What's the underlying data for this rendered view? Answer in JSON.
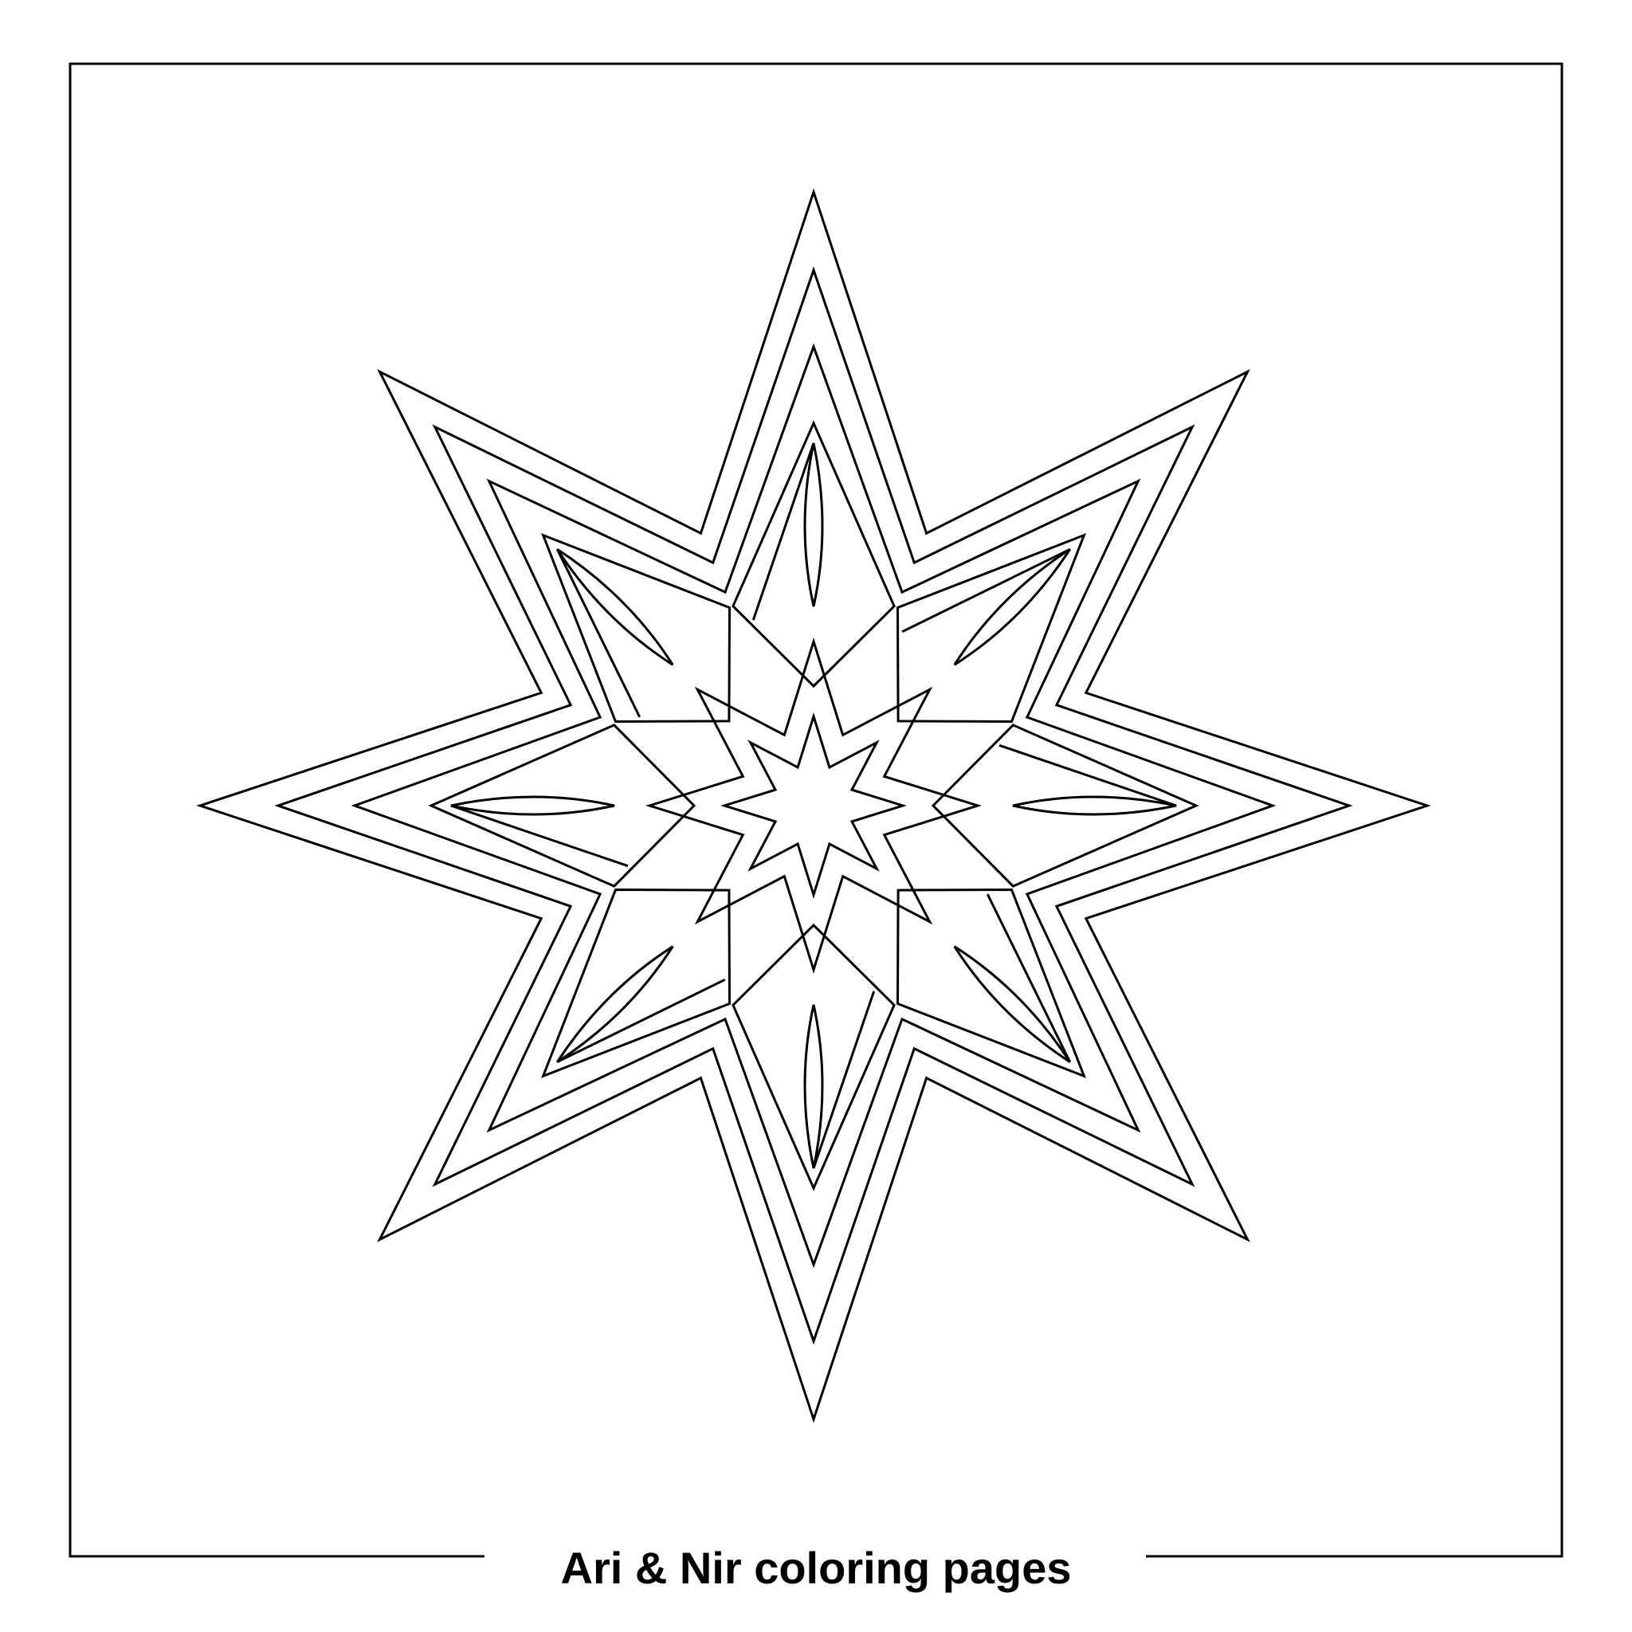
{
  "caption": "Ari & Nir coloring pages",
  "colors": {
    "line": "#000000",
    "background": "#ffffff"
  }
}
